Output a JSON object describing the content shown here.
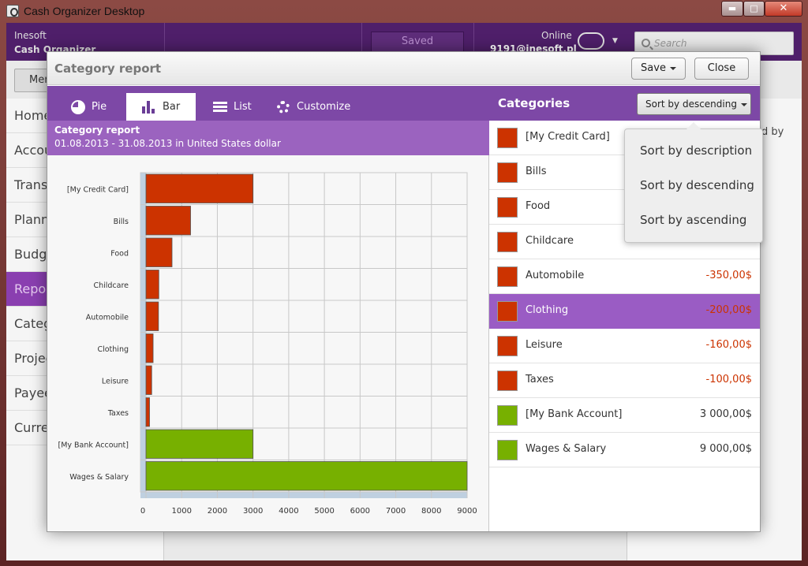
{
  "window": {
    "title": "Cash Organizer Desktop",
    "min_glyph": "▬",
    "max_glyph": "□",
    "close_glyph": "✕"
  },
  "header": {
    "brand_line1": "Inesoft",
    "brand_line2": "Cash Organizer",
    "saved_label": "Saved",
    "online_label": "Online",
    "account": "9191@inesoft.pl",
    "search_placeholder": "Search"
  },
  "menu_label": "Menu",
  "sidebar": {
    "items": [
      {
        "label": "Home"
      },
      {
        "label": "Accou"
      },
      {
        "label": "Transa"
      },
      {
        "label": "Plann"
      },
      {
        "label": "Budge"
      },
      {
        "label": "Repor"
      },
      {
        "label": "Categ"
      },
      {
        "label": "Projec"
      },
      {
        "label": "Payee"
      },
      {
        "label": "Curren"
      }
    ]
  },
  "right_pane_text": "ed by",
  "dialog": {
    "title": "Category report",
    "save_label": "Save",
    "close_label": "Close",
    "tabs": [
      {
        "label": "Pie",
        "icon": "pie-chart-icon"
      },
      {
        "label": "Bar",
        "icon": "bar-chart-icon"
      },
      {
        "label": "List",
        "icon": "list-icon"
      },
      {
        "label": "Customize",
        "icon": "gear-icon"
      }
    ],
    "report_title": "Category report",
    "report_subtitle": "01.08.2013 - 31.08.2013 in United States dollar",
    "categories_title": "Categories",
    "sort_label": "Sort by descending",
    "sort_options": [
      "Sort by description",
      "Sort by descending",
      "Sort by ascending"
    ]
  },
  "categories": [
    {
      "name": "[My Credit Card]",
      "amount": "",
      "color": "#cc3300"
    },
    {
      "name": "Bills",
      "amount": "",
      "color": "#cc3300"
    },
    {
      "name": "Food",
      "amount": "",
      "color": "#cc3300"
    },
    {
      "name": "Childcare",
      "amount": "",
      "color": "#cc3300"
    },
    {
      "name": "Automobile",
      "amount": "-350,00$",
      "color": "#cc3300"
    },
    {
      "name": "Clothing",
      "amount": "-200,00$",
      "color": "#cc3300",
      "selected": true
    },
    {
      "name": "Leisure",
      "amount": "-160,00$",
      "color": "#cc3300"
    },
    {
      "name": "Taxes",
      "amount": "-100,00$",
      "color": "#cc3300"
    },
    {
      "name": "[My Bank Account]",
      "amount": "3 000,00$",
      "color": "#77b000"
    },
    {
      "name": "Wages & Salary",
      "amount": "9 000,00$",
      "color": "#77b000"
    }
  ],
  "chart_data": {
    "type": "bar",
    "orientation": "horizontal",
    "categories": [
      "[My Credit Card]",
      "Bills",
      "Food",
      "Childcare",
      "Automobile",
      "Clothing",
      "Leisure",
      "Taxes",
      "[My Bank Account]",
      "Wages & Salary"
    ],
    "values": [
      3000,
      1250,
      730,
      360,
      350,
      200,
      160,
      100,
      3000,
      9000
    ],
    "colors": [
      "#cc3300",
      "#cc3300",
      "#cc3300",
      "#cc3300",
      "#cc3300",
      "#cc3300",
      "#cc3300",
      "#cc3300",
      "#77b000",
      "#77b000"
    ],
    "x_ticks": [
      0,
      1000,
      2000,
      3000,
      4000,
      5000,
      6000,
      7000,
      8000,
      9000
    ],
    "xlim": [
      0,
      9000
    ],
    "grid": true
  }
}
